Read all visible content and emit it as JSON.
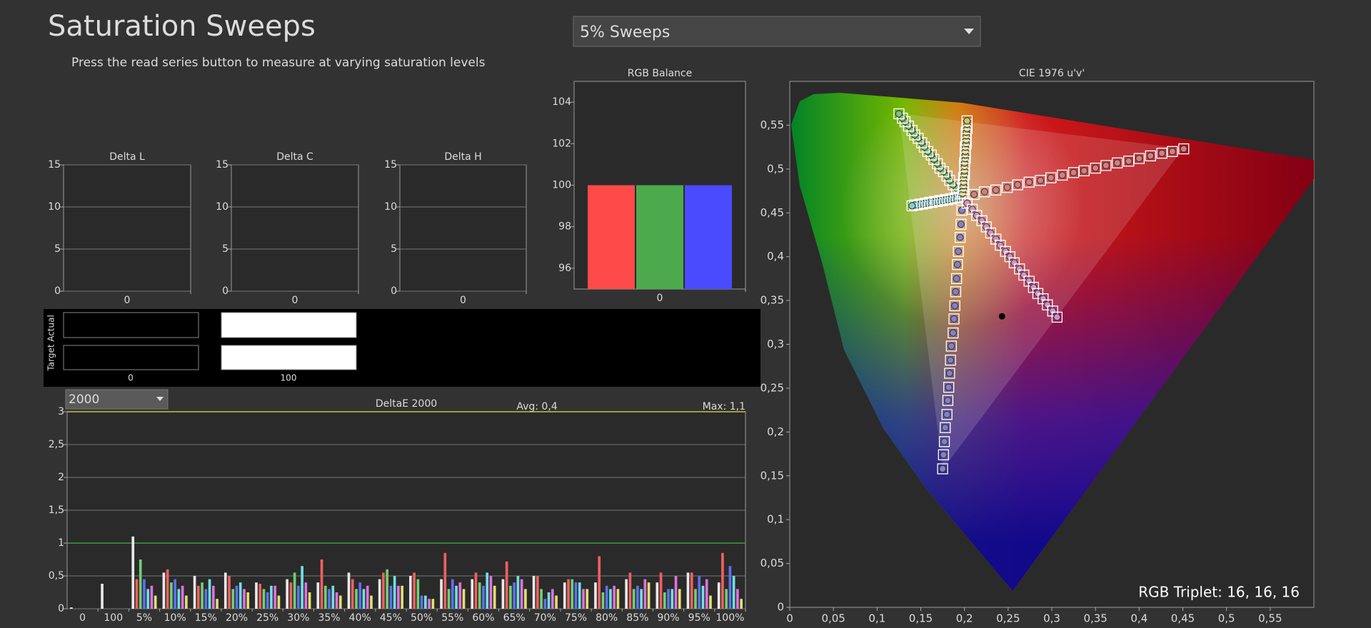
{
  "header": {
    "title": "Saturation Sweeps",
    "subtitle": "Press the read series button to measure at varying saturation levels",
    "dropdown": "5% Sweeps"
  },
  "swatches": {
    "row_labels": [
      "Actual",
      "Target"
    ],
    "items": [
      {
        "label": "0",
        "actual": "#000000",
        "target": "#000000"
      },
      {
        "label": "100",
        "actual": "#ffffff",
        "target": "#ffffff"
      }
    ]
  },
  "chart_data": [
    {
      "type": "bar",
      "title": "Delta L",
      "categories": [
        "0"
      ],
      "values": [
        0
      ],
      "color": "#888888",
      "ylim": [
        0,
        15
      ],
      "yticks": [
        0,
        5,
        10,
        15
      ],
      "grid": true
    },
    {
      "type": "bar",
      "title": "Delta C",
      "categories": [
        "0"
      ],
      "values": [
        0
      ],
      "color": "#888888",
      "ylim": [
        0,
        15
      ],
      "yticks": [
        0,
        5,
        10,
        15
      ],
      "grid": true
    },
    {
      "type": "bar",
      "title": "Delta H",
      "categories": [
        "0"
      ],
      "values": [
        0
      ],
      "color": "#888888",
      "ylim": [
        0,
        15
      ],
      "yticks": [
        0,
        5,
        10,
        15
      ],
      "grid": true
    },
    {
      "type": "bar",
      "title": "RGB Balance",
      "categories": [
        "0"
      ],
      "series": [
        {
          "color": "#ff4a4a",
          "values": [
            100
          ]
        },
        {
          "color": "#4caa4c",
          "values": [
            100
          ]
        },
        {
          "color": "#4a4aff",
          "values": [
            100
          ]
        }
      ],
      "ylim": [
        95,
        105
      ],
      "yticks": [
        96,
        98,
        100,
        102,
        104
      ],
      "grid": false
    },
    {
      "type": "bar",
      "title": "DeltaE 2000",
      "dropdown": "2000",
      "avg_label": "Avg: 0,4",
      "max_label": "Max: 1,1",
      "categories": [
        "0",
        "100",
        "5%",
        "10%",
        "15%",
        "20%",
        "25%",
        "30%",
        "35%",
        "40%",
        "45%",
        "50%",
        "55%",
        "60%",
        "65%",
        "70%",
        "75%",
        "80%",
        "85%",
        "90%",
        "95%",
        "100%"
      ],
      "series": [
        {
          "color": "#e8e8e8",
          "values": [
            0.02,
            0.38,
            1.1,
            0.55,
            0.5,
            0.55,
            0.4,
            0.45,
            0.4,
            0.55,
            0.45,
            0.5,
            0.45,
            0.45,
            0.45,
            0.5,
            0.4,
            0.4,
            0.45,
            0.4,
            0.55,
            0.4
          ]
        },
        {
          "color": "#f06060",
          "values": [
            0,
            0,
            0.45,
            0.6,
            0.35,
            0.5,
            0.38,
            0.4,
            0.75,
            0.45,
            0.55,
            0.55,
            0.85,
            0.55,
            0.72,
            0.5,
            0.45,
            0.8,
            0.55,
            0.55,
            0.55,
            0.85
          ]
        },
        {
          "color": "#70d070",
          "values": [
            0,
            0,
            0.75,
            0.4,
            0.4,
            0.3,
            0.3,
            0.55,
            0.35,
            0.3,
            0.6,
            0.45,
            0.3,
            0.4,
            0.35,
            0.3,
            0.45,
            0.25,
            0.3,
            0.25,
            0.3,
            0.3
          ]
        },
        {
          "color": "#6070f0",
          "values": [
            0,
            0,
            0.45,
            0.45,
            0.3,
            0.35,
            0.25,
            0.35,
            0.3,
            0.4,
            0.35,
            0.2,
            0.45,
            0.35,
            0.4,
            0.15,
            0.4,
            0.35,
            0.35,
            0.3,
            0.5,
            0.65
          ]
        },
        {
          "color": "#70e0e0",
          "values": [
            0,
            0,
            0.3,
            0.3,
            0.45,
            0.4,
            0.35,
            0.65,
            0.35,
            0.3,
            0.5,
            0.2,
            0.35,
            0.55,
            0.5,
            0.25,
            0.4,
            0.3,
            0.3,
            0.3,
            0.35,
            0.5
          ]
        },
        {
          "color": "#e070e0",
          "values": [
            0,
            0,
            0.35,
            0.35,
            0.35,
            0.3,
            0.35,
            0.4,
            0.25,
            0.35,
            0.35,
            0.15,
            0.4,
            0.5,
            0.45,
            0.3,
            0.3,
            0.35,
            0.45,
            0.5,
            0.45,
            0.3
          ]
        },
        {
          "color": "#e0e070",
          "values": [
            0,
            0,
            0.2,
            0.2,
            0.15,
            0.25,
            0.2,
            0.25,
            0.2,
            0.2,
            0.35,
            0.15,
            0.3,
            0.35,
            0.3,
            0.2,
            0.3,
            0.3,
            0.4,
            0.3,
            0.2,
            0.15
          ]
        }
      ],
      "reference_lines": [
        {
          "value": 1,
          "color": "#3aa03a"
        },
        {
          "value": 3,
          "color": "#c8c040"
        }
      ],
      "ylim": [
        0,
        3
      ],
      "yticks": [
        0,
        {
          "value": 0.5,
          "label": "0,5"
        },
        1,
        {
          "value": 1.5,
          "label": "1,5"
        },
        2,
        {
          "value": 2.5,
          "label": "2,5"
        },
        3
      ],
      "grid": true
    },
    {
      "type": "scatter",
      "title": "CIE 1976 u'v'",
      "annotation": "RGB Triplet: 16, 16, 16",
      "xlim": [
        0,
        0.6
      ],
      "ylim": [
        0,
        0.6
      ],
      "xticks": [
        0,
        {
          "value": 0.05,
          "label": "0,05"
        },
        {
          "value": 0.1,
          "label": "0,1"
        },
        {
          "value": 0.15,
          "label": "0,15"
        },
        {
          "value": 0.2,
          "label": "0,2"
        },
        {
          "value": 0.25,
          "label": "0,25"
        },
        {
          "value": 0.3,
          "label": "0,3"
        },
        {
          "value": 0.35,
          "label": "0,35"
        },
        {
          "value": 0.4,
          "label": "0,4"
        },
        {
          "value": 0.45,
          "label": "0,45"
        },
        {
          "value": 0.5,
          "label": "0,5"
        },
        {
          "value": 0.55,
          "label": "0,55"
        }
      ],
      "yticks": [
        0,
        {
          "value": 0.05,
          "label": "0,05"
        },
        {
          "value": 0.1,
          "label": "0,1"
        },
        {
          "value": 0.15,
          "label": "0,15"
        },
        {
          "value": 0.2,
          "label": "0,2"
        },
        {
          "value": 0.25,
          "label": "0,25"
        },
        {
          "value": 0.3,
          "label": "0,3"
        },
        {
          "value": 0.35,
          "label": "0,35"
        },
        {
          "value": 0.4,
          "label": "0,4"
        },
        {
          "value": 0.45,
          "label": "0,45"
        },
        {
          "value": 0.5,
          "label": "0,5"
        },
        {
          "value": 0.55,
          "label": "0,55"
        }
      ],
      "current_point": {
        "x": 0.243,
        "y": 0.332
      },
      "series": [
        {
          "color": "#d08080",
          "x": [
            0.211,
            0.223,
            0.236,
            0.249,
            0.261,
            0.274,
            0.287,
            0.299,
            0.312,
            0.325,
            0.337,
            0.35,
            0.362,
            0.375,
            0.388,
            0.4,
            0.413,
            0.426,
            0.438,
            0.451
          ],
          "y": [
            0.471,
            0.474,
            0.476,
            0.479,
            0.482,
            0.485,
            0.487,
            0.49,
            0.493,
            0.496,
            0.498,
            0.501,
            0.504,
            0.507,
            0.509,
            0.512,
            0.515,
            0.518,
            0.52,
            0.523
          ]
        },
        {
          "color": "#80c080",
          "x": [
            0.194,
            0.191,
            0.187,
            0.183,
            0.18,
            0.176,
            0.172,
            0.169,
            0.165,
            0.162,
            0.158,
            0.154,
            0.151,
            0.147,
            0.143,
            0.14,
            0.136,
            0.132,
            0.129,
            0.125
          ],
          "y": [
            0.473,
            0.478,
            0.482,
            0.487,
            0.492,
            0.497,
            0.501,
            0.506,
            0.511,
            0.516,
            0.52,
            0.525,
            0.53,
            0.535,
            0.539,
            0.544,
            0.549,
            0.554,
            0.558,
            0.563
          ]
        },
        {
          "color": "#8080d0",
          "x": [
            0.197,
            0.196,
            0.195,
            0.193,
            0.192,
            0.191,
            0.19,
            0.189,
            0.188,
            0.187,
            0.185,
            0.184,
            0.183,
            0.182,
            0.181,
            0.18,
            0.178,
            0.177,
            0.176,
            0.175
          ],
          "y": [
            0.453,
            0.437,
            0.422,
            0.406,
            0.391,
            0.375,
            0.36,
            0.344,
            0.329,
            0.313,
            0.298,
            0.282,
            0.267,
            0.251,
            0.236,
            0.22,
            0.205,
            0.189,
            0.174,
            0.158
          ]
        },
        {
          "color": "#80d0d0",
          "x": [
            0.195,
            0.192,
            0.189,
            0.186,
            0.184,
            0.181,
            0.178,
            0.175,
            0.172,
            0.169,
            0.166,
            0.163,
            0.16,
            0.157,
            0.155,
            0.152,
            0.149,
            0.146,
            0.143,
            0.14
          ],
          "y": [
            0.468,
            0.467,
            0.467,
            0.466,
            0.466,
            0.465,
            0.465,
            0.464,
            0.464,
            0.463,
            0.463,
            0.462,
            0.462,
            0.461,
            0.461,
            0.46,
            0.46,
            0.459,
            0.459,
            0.458
          ]
        },
        {
          "color": "#d090d0",
          "x": [
            0.203,
            0.209,
            0.214,
            0.22,
            0.225,
            0.23,
            0.236,
            0.241,
            0.247,
            0.252,
            0.257,
            0.263,
            0.268,
            0.274,
            0.279,
            0.284,
            0.29,
            0.295,
            0.301,
            0.306
          ],
          "y": [
            0.461,
            0.454,
            0.447,
            0.441,
            0.434,
            0.427,
            0.42,
            0.413,
            0.406,
            0.4,
            0.393,
            0.386,
            0.379,
            0.372,
            0.365,
            0.358,
            0.352,
            0.345,
            0.338,
            0.331
          ]
        },
        {
          "color": "#c8c870",
          "x": [
            0.198,
            0.199,
            0.199,
            0.199,
            0.199,
            0.2,
            0.2,
            0.2,
            0.2,
            0.201,
            0.201,
            0.201,
            0.201,
            0.202,
            0.202,
            0.202,
            0.202,
            0.203,
            0.203,
            0.203
          ],
          "y": [
            0.472,
            0.477,
            0.481,
            0.485,
            0.49,
            0.494,
            0.498,
            0.503,
            0.507,
            0.512,
            0.516,
            0.52,
            0.525,
            0.529,
            0.533,
            0.538,
            0.542,
            0.546,
            0.551,
            0.555
          ]
        }
      ]
    }
  ]
}
